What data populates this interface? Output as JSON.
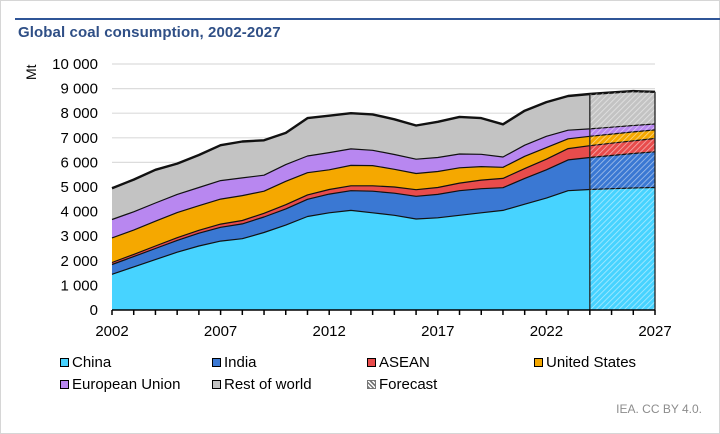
{
  "chart_data": {
    "type": "area",
    "stacked": true,
    "title": "Global coal consumption, 2002-2027",
    "ylabel": "Mt",
    "xlabel": "",
    "ylim": [
      0,
      10000
    ],
    "xlim": [
      2002,
      2027
    ],
    "yticks": [
      0,
      1000,
      2000,
      3000,
      4000,
      5000,
      6000,
      7000,
      8000,
      9000,
      10000
    ],
    "ytick_labels": [
      "0",
      "1 000",
      "2 000",
      "3 000",
      "4 000",
      "5 000",
      "6 000",
      "7 000",
      "8 000",
      "9 000",
      "10 000"
    ],
    "xticks": [
      2002,
      2007,
      2012,
      2017,
      2022,
      2027
    ],
    "xtick_labels": [
      "2002",
      "2007",
      "2012",
      "2017",
      "2022",
      "2027"
    ],
    "grid": "horizontal",
    "forecast_start": 2024,
    "x": [
      2002,
      2003,
      2004,
      2005,
      2006,
      2007,
      2008,
      2009,
      2010,
      2011,
      2012,
      2013,
      2014,
      2015,
      2016,
      2017,
      2018,
      2019,
      2020,
      2021,
      2022,
      2023,
      2024,
      2025,
      2026,
      2027
    ],
    "series": [
      {
        "name": "China",
        "color": "#47d3ff",
        "values": [
          1450,
          1750,
          2050,
          2350,
          2600,
          2800,
          2900,
          3150,
          3450,
          3800,
          3950,
          4050,
          3950,
          3850,
          3700,
          3750,
          3850,
          3950,
          4050,
          4300,
          4550,
          4850,
          4900,
          4930,
          4960,
          4980
        ]
      },
      {
        "name": "India",
        "color": "#3a78d3",
        "values": [
          400,
          420,
          450,
          480,
          520,
          560,
          600,
          630,
          660,
          700,
          760,
          800,
          880,
          900,
          920,
          950,
          1000,
          980,
          920,
          1050,
          1150,
          1250,
          1300,
          1350,
          1400,
          1450
        ]
      },
      {
        "name": "ASEAN",
        "color": "#e84c4c",
        "values": [
          80,
          90,
          100,
          110,
          120,
          130,
          140,
          150,
          170,
          180,
          190,
          200,
          220,
          250,
          270,
          280,
          310,
          350,
          380,
          400,
          430,
          460,
          480,
          500,
          520,
          540
        ]
      },
      {
        "name": "United States",
        "color": "#f5a800",
        "values": [
          1000,
          990,
          1010,
          1020,
          1000,
          1020,
          1010,
          900,
          950,
          900,
          800,
          830,
          820,
          720,
          660,
          650,
          620,
          550,
          450,
          500,
          470,
          400,
          380,
          370,
          360,
          350
        ]
      },
      {
        "name": "European Union",
        "color": "#b887f0",
        "values": [
          750,
          740,
          740,
          740,
          740,
          750,
          720,
          650,
          680,
          680,
          700,
          670,
          620,
          600,
          580,
          570,
          560,
          500,
          420,
          450,
          460,
          350,
          300,
          280,
          260,
          240
        ]
      },
      {
        "name": "Rest of world",
        "color": "#c3c3c3",
        "values": [
          1270,
          1310,
          1350,
          1250,
          1320,
          1440,
          1480,
          1420,
          1290,
          1540,
          1500,
          1450,
          1460,
          1430,
          1370,
          1450,
          1510,
          1470,
          1330,
          1400,
          1390,
          1390,
          1420,
          1410,
          1400,
          1310
        ]
      }
    ],
    "legend": [
      {
        "name": "China",
        "color": "#47d3ff"
      },
      {
        "name": "India",
        "color": "#3a78d3"
      },
      {
        "name": "ASEAN",
        "color": "#e84c4c"
      },
      {
        "name": "United States",
        "color": "#f5a800"
      },
      {
        "name": "European Union",
        "color": "#b887f0"
      },
      {
        "name": "Rest of world",
        "color": "#c3c3c3"
      },
      {
        "name": "Forecast",
        "color": "hatched"
      }
    ],
    "legend_position": "bottom",
    "source": "IEA. CC BY 4.0."
  }
}
